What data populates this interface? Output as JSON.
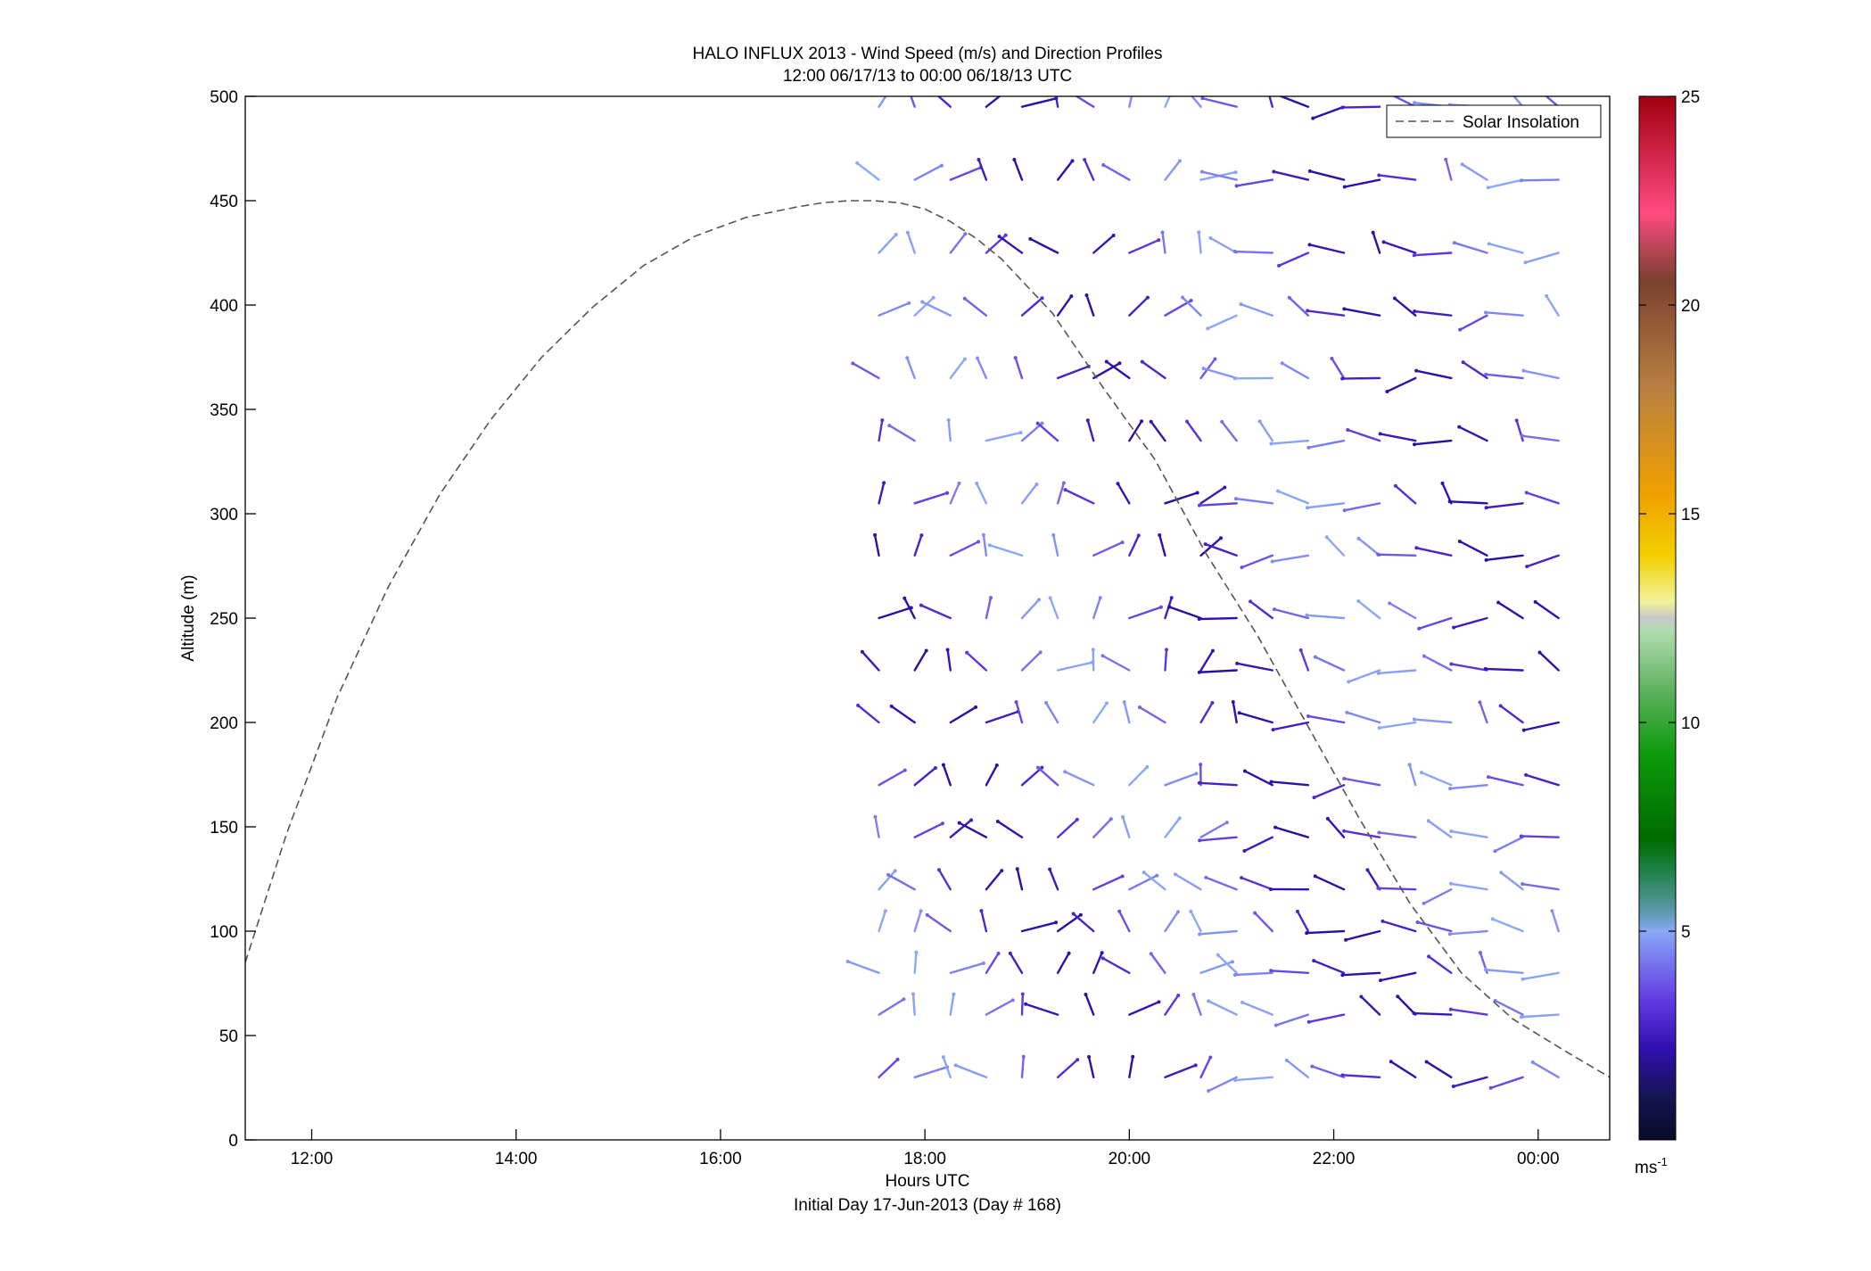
{
  "chart_data": {
    "type": "line",
    "title": "HALO INFLUX 2013 - Wind Speed (m/s) and Direction Profiles",
    "subtitle": "12:00 06/17/13 to 00:00 06/18/13  UTC",
    "xlabel": "Hours UTC",
    "xlabel2": "Initial Day 17-Jun-2013 (Day # 168)",
    "ylabel": "Altitude (m)",
    "xlim": [
      11.35,
      24.7
    ],
    "ylim": [
      0,
      500
    ],
    "x_ticks": [
      {
        "value": 12,
        "label": "12:00"
      },
      {
        "value": 14,
        "label": "14:00"
      },
      {
        "value": 16,
        "label": "16:00"
      },
      {
        "value": 18,
        "label": "18:00"
      },
      {
        "value": 20,
        "label": "20:00"
      },
      {
        "value": 22,
        "label": "22:00"
      },
      {
        "value": 24,
        "label": "00:00"
      }
    ],
    "y_ticks": [
      0,
      50,
      100,
      150,
      200,
      250,
      300,
      350,
      400,
      450,
      500
    ],
    "legend": {
      "placement": "top-right",
      "entries": [
        "Solar Insolation"
      ]
    },
    "colorbar": {
      "unit_base": "ms",
      "unit_exp": "-1",
      "range": [
        0,
        25
      ],
      "ticks": [
        5,
        10,
        15,
        20,
        25
      ],
      "stops": [
        {
          "v": 0,
          "c": "#0a0a2a"
        },
        {
          "v": 1,
          "c": "#141450"
        },
        {
          "v": 2.2,
          "c": "#3010b0"
        },
        {
          "v": 3.3,
          "c": "#6038e0"
        },
        {
          "v": 4.3,
          "c": "#7878ee"
        },
        {
          "v": 5,
          "c": "#8aa8f8"
        },
        {
          "v": 5.5,
          "c": "#5a98a8"
        },
        {
          "v": 6.5,
          "c": "#1a8040"
        },
        {
          "v": 7.2,
          "c": "#006a00"
        },
        {
          "v": 9.2,
          "c": "#0a9a0a"
        },
        {
          "v": 10.7,
          "c": "#5ab05a"
        },
        {
          "v": 12.2,
          "c": "#b0dcb0"
        },
        {
          "v": 12.5,
          "c": "#c8c8c8"
        },
        {
          "v": 12.9,
          "c": "#f2f29a"
        },
        {
          "v": 14,
          "c": "#f2d000"
        },
        {
          "v": 15.5,
          "c": "#f0a000"
        },
        {
          "v": 18,
          "c": "#b88040"
        },
        {
          "v": 20.6,
          "c": "#7a4030"
        },
        {
          "v": 22.2,
          "c": "#ff4a80"
        },
        {
          "v": 25,
          "c": "#a00010"
        }
      ]
    },
    "series": [
      {
        "name": "Solar Insolation",
        "style": "dashed",
        "color": "#555555",
        "x": [
          11.35,
          11.75,
          12.25,
          12.75,
          13.25,
          13.75,
          14.25,
          14.75,
          15.25,
          15.75,
          16.25,
          16.75,
          17.0,
          17.25,
          17.5,
          17.75,
          18.0,
          18.25,
          18.5,
          18.75,
          19.25,
          19.75,
          20.25,
          20.75,
          21.25,
          21.75,
          22.25,
          22.75,
          23.25,
          23.75,
          24.25,
          24.7
        ],
        "y": [
          85,
          146,
          212,
          265,
          309,
          345,
          375,
          399,
          419,
          433,
          442,
          447,
          449,
          450,
          450,
          449,
          446,
          440,
          432,
          422,
          396,
          360,
          326,
          281,
          242,
          198,
          154,
          113,
          80,
          58,
          43,
          30
        ]
      }
    ],
    "wind_profiles": {
      "times": [
        17.55,
        17.9,
        18.25,
        18.6,
        18.95,
        19.3,
        19.65,
        20.0,
        20.35,
        20.7,
        21.05,
        21.4,
        21.75,
        22.1,
        22.45,
        22.8,
        23.15,
        23.5,
        23.85,
        24.2
      ],
      "altitudes": [
        30,
        60,
        80,
        100,
        120,
        145,
        170,
        200,
        225,
        250,
        280,
        305,
        335,
        365,
        395,
        425,
        460,
        495
      ],
      "dominant_direction_deg": {
        "before_21h": 275,
        "after_21h": 200
      },
      "typical_speed_ms": [
        2,
        5
      ],
      "missing_levels_note": ""
    }
  }
}
